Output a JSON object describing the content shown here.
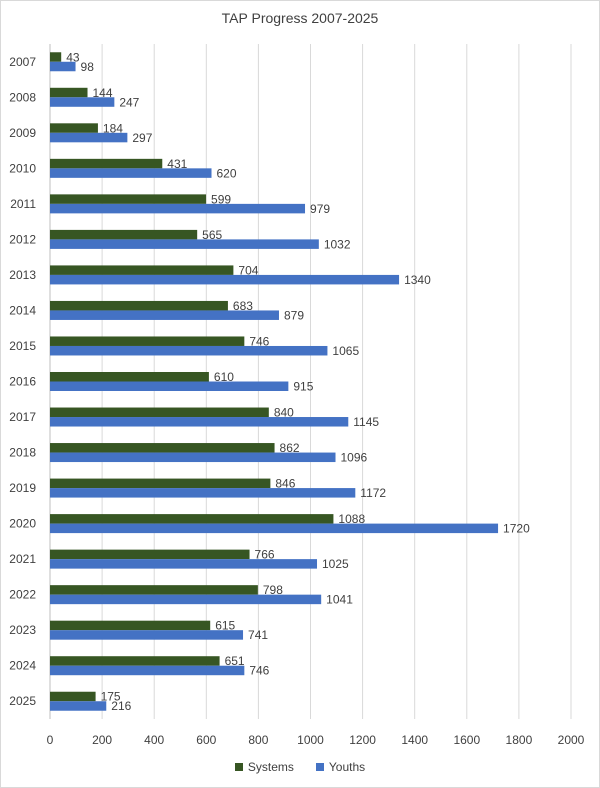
{
  "chart_data": {
    "type": "bar",
    "orientation": "horizontal",
    "title": "TAP Progress 2007-2025",
    "categories": [
      "2007",
      "2008",
      "2009",
      "2010",
      "2011",
      "2012",
      "2013",
      "2014",
      "2015",
      "2016",
      "2017",
      "2018",
      "2019",
      "2020",
      "2021",
      "2022",
      "2023",
      "2024",
      "2025"
    ],
    "series": [
      {
        "name": "Systems",
        "color": "#375623",
        "values": [
          43,
          144,
          184,
          431,
          599,
          565,
          704,
          683,
          746,
          610,
          840,
          862,
          846,
          1088,
          766,
          798,
          615,
          651,
          175
        ]
      },
      {
        "name": "Youths",
        "color": "#4472C4",
        "values": [
          98,
          247,
          297,
          620,
          979,
          1032,
          1340,
          879,
          1065,
          915,
          1145,
          1096,
          1172,
          1720,
          1025,
          1041,
          741,
          746,
          216
        ]
      }
    ],
    "xlim": [
      0,
      2000
    ],
    "xticks": [
      0,
      200,
      400,
      600,
      800,
      1000,
      1200,
      1400,
      1600,
      1800,
      2000
    ],
    "grid": true,
    "legend_position": "bottom"
  }
}
